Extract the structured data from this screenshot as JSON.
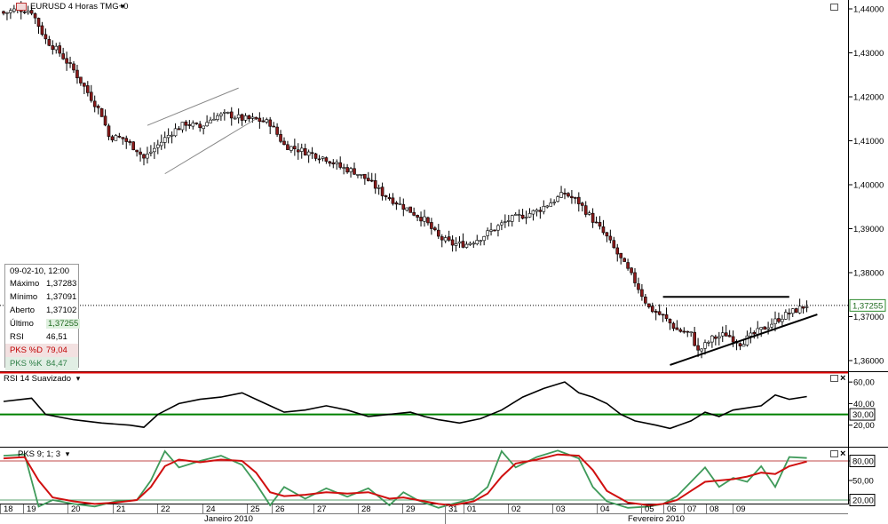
{
  "window": {
    "symbol_title": "EURUSD 4 Horas TMG+0",
    "dropdown_glyph": "▾"
  },
  "colors": {
    "bull_candle": "#ffffff",
    "bear_candle": "#8b1a1a",
    "candle_outline": "#000000",
    "rsi_line": "#000000",
    "rsi_upper_level": "#e00000",
    "rsi_lower_level": "#008000",
    "pks_d": "#d01010",
    "pks_k": "#3f9a5a",
    "last_price_highlight": "#2e8b2e"
  },
  "info_panel": {
    "datetime": "09-02-10, 12:00",
    "rows": [
      {
        "label": "Máximo",
        "value": "1,37283"
      },
      {
        "label": "Mínimo",
        "value": "1,37091"
      },
      {
        "label": "Aberto",
        "value": "1,37102"
      },
      {
        "label": "Último",
        "value": "1,37255"
      },
      {
        "label": "RSI",
        "value": "46,51"
      },
      {
        "label": "PKS %D",
        "value": "79,04"
      },
      {
        "label": "PKS %K",
        "value": "84,47"
      }
    ]
  },
  "price_axis": {
    "ticks": [
      "1,44000",
      "1,43000",
      "1,42000",
      "1,41000",
      "1,40000",
      "1,39000",
      "1,38000",
      "1,37000",
      "1,36000"
    ],
    "last_price_label": "1,37255"
  },
  "rsi_panel": {
    "title": "RSI 14 Suavizado",
    "ticks": [
      "60,00",
      "40,00",
      "20,00"
    ],
    "level_label": "30,00"
  },
  "pks_panel": {
    "title": "PKS 9; 1; 3",
    "ticks": [
      "80,00",
      "50,00",
      "20,00"
    ]
  },
  "time_axis": {
    "days": [
      "18",
      "19",
      "20",
      "21",
      "22",
      "24",
      "25",
      "26",
      "27",
      "28",
      "29",
      "31",
      "01",
      "02",
      "03",
      "04",
      "05",
      "06",
      "07",
      "08",
      "09"
    ],
    "months": [
      "Janeiro 2010",
      "Fevereiro 2010"
    ]
  },
  "chart_data": [
    {
      "type": "candlestick",
      "title": "EURUSD 4 Horas TMG+0",
      "ylim": [
        1.356,
        1.4415
      ],
      "yticks": [
        1.44,
        1.43,
        1.42,
        1.41,
        1.4,
        1.39,
        1.38,
        1.37,
        1.36
      ],
      "last_price": 1.37255,
      "x_day_labels": [
        "18",
        "19",
        "20",
        "21",
        "22",
        "24",
        "25",
        "26",
        "27",
        "28",
        "29",
        "31",
        "01",
        "02",
        "03",
        "04",
        "05",
        "06",
        "07",
        "08",
        "09"
      ],
      "months": [
        "Janeiro 2010",
        "Fevereiro 2010"
      ],
      "close_path": [
        [
          0,
          1.439
        ],
        [
          4,
          1.44
        ],
        [
          8,
          1.4395
        ],
        [
          12,
          1.433
        ],
        [
          16,
          1.43
        ],
        [
          20,
          1.426
        ],
        [
          24,
          1.421
        ],
        [
          28,
          1.416
        ],
        [
          30,
          1.411
        ],
        [
          34,
          1.4105
        ],
        [
          38,
          1.408
        ],
        [
          40,
          1.406
        ],
        [
          44,
          1.409
        ],
        [
          48,
          1.412
        ],
        [
          52,
          1.414
        ],
        [
          56,
          1.413
        ],
        [
          60,
          1.4155
        ],
        [
          64,
          1.416
        ],
        [
          68,
          1.415
        ],
        [
          72,
          1.4148
        ],
        [
          76,
          1.414
        ],
        [
          80,
          1.409
        ],
        [
          84,
          1.408
        ],
        [
          88,
          1.407
        ],
        [
          92,
          1.406
        ],
        [
          96,
          1.404
        ],
        [
          100,
          1.403
        ],
        [
          104,
          1.401
        ],
        [
          108,
          1.398
        ],
        [
          112,
          1.396
        ],
        [
          116,
          1.394
        ],
        [
          120,
          1.392
        ],
        [
          124,
          1.388
        ],
        [
          128,
          1.3865
        ],
        [
          132,
          1.3865
        ],
        [
          136,
          1.388
        ],
        [
          140,
          1.39
        ],
        [
          144,
          1.392
        ],
        [
          148,
          1.393
        ],
        [
          152,
          1.394
        ],
        [
          156,
          1.396
        ],
        [
          160,
          1.398
        ],
        [
          164,
          1.396
        ],
        [
          168,
          1.392
        ],
        [
          172,
          1.388
        ],
        [
          176,
          1.383
        ],
        [
          180,
          1.378
        ],
        [
          184,
          1.372
        ],
        [
          188,
          1.37
        ],
        [
          192,
          1.367
        ],
        [
          196,
          1.366
        ],
        [
          198,
          1.362
        ],
        [
          202,
          1.365
        ],
        [
          206,
          1.366
        ],
        [
          210,
          1.364
        ],
        [
          214,
          1.366
        ],
        [
          218,
          1.368
        ],
        [
          222,
          1.37
        ],
        [
          226,
          1.3715
        ],
        [
          229,
          1.3726
        ]
      ],
      "annotations": [
        {
          "type": "rising_wedge",
          "upper": [
            [
              41,
              1.4135
            ],
            [
              67,
              1.422
            ]
          ],
          "lower": [
            [
              46,
              1.4025
            ],
            [
              72,
              1.415
            ]
          ]
        },
        {
          "type": "ascending_triangle",
          "resistance": [
            [
              188,
              1.3745
            ],
            [
              224,
              1.3745
            ]
          ],
          "support": [
            [
              190,
              1.359
            ],
            [
              232,
              1.3705
            ]
          ]
        }
      ]
    },
    {
      "type": "line",
      "title": "RSI 14 Suavizado",
      "ylim": [
        0,
        70
      ],
      "yticks": [
        60,
        40,
        20
      ],
      "levels": {
        "upper": 70,
        "lower": 30
      },
      "series": [
        {
          "name": "RSI 14 Suavizado",
          "points": [
            [
              0,
              42
            ],
            [
              8,
              45
            ],
            [
              12,
              30
            ],
            [
              20,
              25
            ],
            [
              28,
              22
            ],
            [
              36,
              20
            ],
            [
              40,
              18
            ],
            [
              44,
              30
            ],
            [
              50,
              40
            ],
            [
              56,
              44
            ],
            [
              62,
              46
            ],
            [
              68,
              50
            ],
            [
              72,
              44
            ],
            [
              76,
              38
            ],
            [
              80,
              32
            ],
            [
              86,
              34
            ],
            [
              92,
              38
            ],
            [
              98,
              34
            ],
            [
              104,
              28
            ],
            [
              110,
              30
            ],
            [
              116,
              32
            ],
            [
              120,
              28
            ],
            [
              124,
              25
            ],
            [
              130,
              22
            ],
            [
              136,
              26
            ],
            [
              142,
              34
            ],
            [
              148,
              46
            ],
            [
              154,
              54
            ],
            [
              160,
              60
            ],
            [
              164,
              50
            ],
            [
              168,
              46
            ],
            [
              172,
              40
            ],
            [
              176,
              30
            ],
            [
              180,
              24
            ],
            [
              186,
              20
            ],
            [
              190,
              17
            ],
            [
              196,
              24
            ],
            [
              200,
              32
            ],
            [
              204,
              28
            ],
            [
              208,
              34
            ],
            [
              212,
              36
            ],
            [
              216,
              38
            ],
            [
              220,
              48
            ],
            [
              224,
              44
            ],
            [
              229,
              46.51
            ]
          ]
        }
      ]
    },
    {
      "type": "line",
      "title": "PKS 9; 1; 3",
      "ylim": [
        0,
        100
      ],
      "yticks": [
        80,
        50,
        20
      ],
      "series": [
        {
          "name": "PKS %K",
          "points": [
            [
              0,
              88
            ],
            [
              6,
              90
            ],
            [
              10,
              10
            ],
            [
              14,
              20
            ],
            [
              20,
              14
            ],
            [
              26,
              10
            ],
            [
              32,
              18
            ],
            [
              38,
              20
            ],
            [
              42,
              50
            ],
            [
              46,
              95
            ],
            [
              50,
              70
            ],
            [
              56,
              80
            ],
            [
              62,
              88
            ],
            [
              68,
              74
            ],
            [
              72,
              45
            ],
            [
              76,
              12
            ],
            [
              80,
              40
            ],
            [
              86,
              22
            ],
            [
              92,
              38
            ],
            [
              98,
              25
            ],
            [
              104,
              38
            ],
            [
              110,
              12
            ],
            [
              114,
              32
            ],
            [
              118,
              20
            ],
            [
              124,
              8
            ],
            [
              128,
              14
            ],
            [
              134,
              22
            ],
            [
              138,
              40
            ],
            [
              142,
              95
            ],
            [
              146,
              70
            ],
            [
              152,
              86
            ],
            [
              158,
              96
            ],
            [
              164,
              84
            ],
            [
              168,
              40
            ],
            [
              172,
              18
            ],
            [
              178,
              8
            ],
            [
              184,
              10
            ],
            [
              188,
              14
            ],
            [
              192,
              26
            ],
            [
              196,
              48
            ],
            [
              200,
              70
            ],
            [
              204,
              40
            ],
            [
              208,
              54
            ],
            [
              212,
              48
            ],
            [
              216,
              72
            ],
            [
              220,
              40
            ],
            [
              224,
              86
            ],
            [
              229,
              84.47
            ]
          ]
        },
        {
          "name": "PKS %D",
          "points": [
            [
              0,
              84
            ],
            [
              6,
              86
            ],
            [
              10,
              50
            ],
            [
              14,
              24
            ],
            [
              20,
              18
            ],
            [
              26,
              14
            ],
            [
              32,
              16
            ],
            [
              38,
              20
            ],
            [
              42,
              40
            ],
            [
              46,
              72
            ],
            [
              50,
              82
            ],
            [
              56,
              78
            ],
            [
              62,
              82
            ],
            [
              68,
              80
            ],
            [
              72,
              62
            ],
            [
              76,
              32
            ],
            [
              80,
              26
            ],
            [
              86,
              28
            ],
            [
              92,
              32
            ],
            [
              98,
              30
            ],
            [
              104,
              32
            ],
            [
              110,
              22
            ],
            [
              114,
              24
            ],
            [
              118,
              20
            ],
            [
              124,
              14
            ],
            [
              128,
              12
            ],
            [
              134,
              18
            ],
            [
              138,
              30
            ],
            [
              142,
              56
            ],
            [
              146,
              76
            ],
            [
              152,
              82
            ],
            [
              158,
              90
            ],
            [
              164,
              88
            ],
            [
              168,
              66
            ],
            [
              172,
              34
            ],
            [
              178,
              16
            ],
            [
              184,
              12
            ],
            [
              188,
              14
            ],
            [
              192,
              20
            ],
            [
              196,
              34
            ],
            [
              200,
              48
            ],
            [
              204,
              50
            ],
            [
              208,
              52
            ],
            [
              212,
              56
            ],
            [
              216,
              62
            ],
            [
              220,
              60
            ],
            [
              224,
              72
            ],
            [
              229,
              79.04
            ]
          ]
        }
      ]
    }
  ]
}
